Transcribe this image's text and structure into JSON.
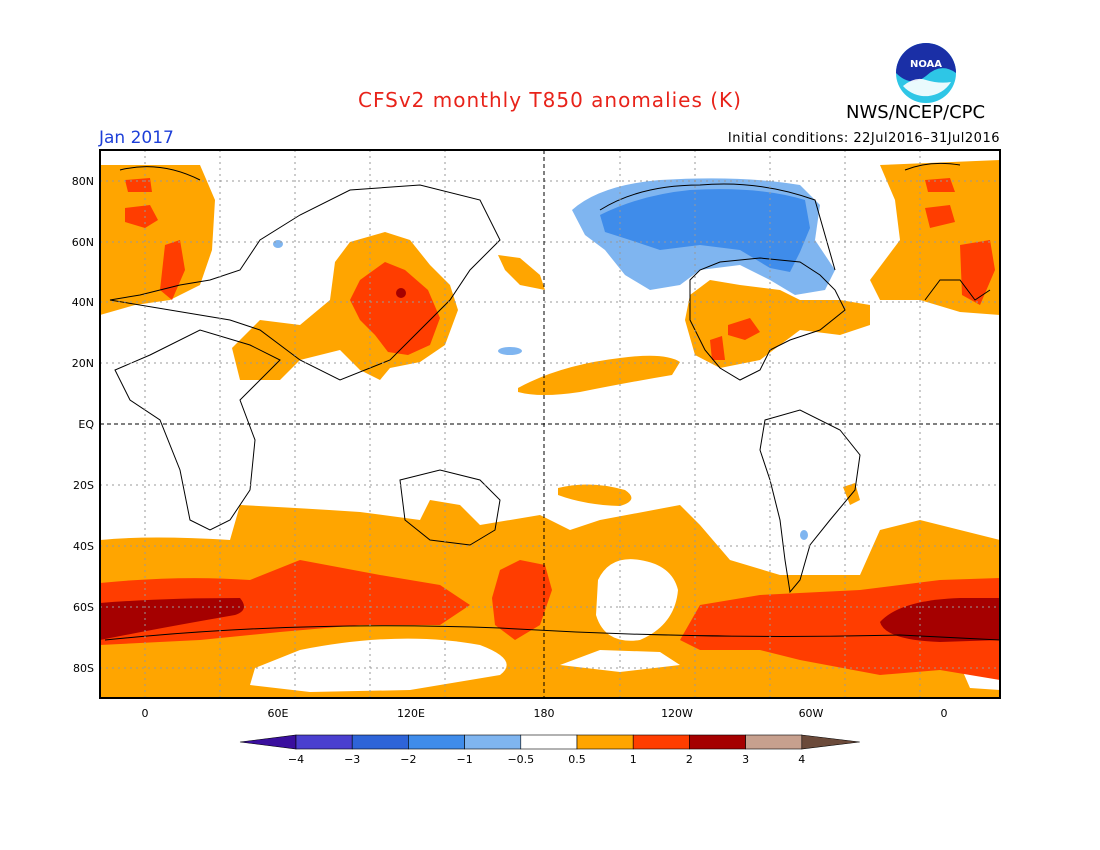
{
  "header": {
    "title": "CFSv2 monthly T850 anomalies (K)",
    "org": "NWS/NCEP/CPC",
    "month": "Jan 2017",
    "initial_conditions": "Initial conditions: 22Jul2016–31Jul2016"
  },
  "logo": {
    "text": "NOAA"
  },
  "map": {
    "lat_labels": [
      "80N",
      "60N",
      "40N",
      "20N",
      "EQ",
      "20S",
      "40S",
      "60S",
      "80S"
    ],
    "lon_labels": [
      "0",
      "60E",
      "120E",
      "180",
      "120W",
      "60W",
      "0"
    ]
  },
  "colorbar": {
    "labels": [
      "−4",
      "−3",
      "−2",
      "−1",
      "−0.5",
      "0.5",
      "1",
      "2",
      "3",
      "4"
    ],
    "colors": [
      "#3a0f9e",
      "#4a3fcf",
      "#2e64d8",
      "#3f8cea",
      "#7fb5f0",
      "#ffffff",
      "#ffa500",
      "#ff3d00",
      "#a50000",
      "#c7a08e",
      "#6b4a3a"
    ]
  }
}
